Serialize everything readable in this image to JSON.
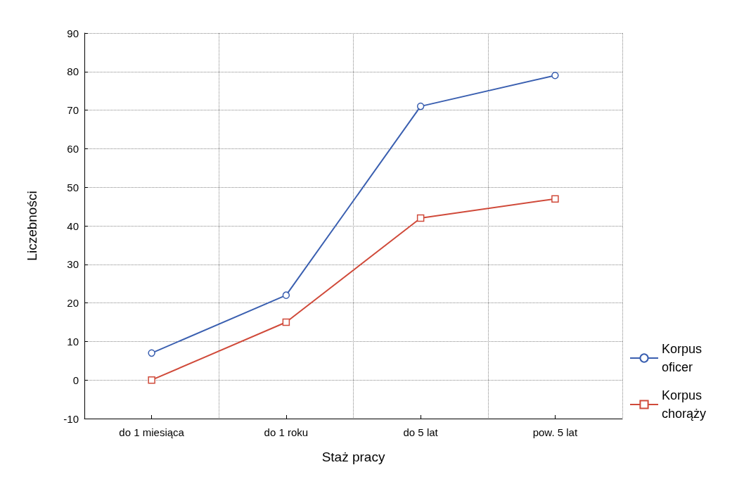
{
  "chart_data": {
    "type": "line",
    "xlabel": "Staż pracy",
    "ylabel": "Liczebności",
    "categories": [
      "do 1 miesiąca",
      "do 1 roku",
      "do 5 lat",
      "pow. 5 lat"
    ],
    "series": [
      {
        "name": "Korpus oficer",
        "color": "#3a5fb0",
        "marker": "circle",
        "values": [
          7,
          22,
          71,
          79
        ]
      },
      {
        "name": "Korpus chorąży",
        "color": "#d04a3a",
        "marker": "square",
        "values": [
          0,
          15,
          42,
          47
        ]
      }
    ],
    "ylim": [
      -10,
      90
    ],
    "yticks": [
      -10,
      0,
      10,
      20,
      30,
      40,
      50,
      60,
      70,
      80,
      90
    ],
    "grid": true,
    "legend": "right",
    "line_style": "solid"
  }
}
